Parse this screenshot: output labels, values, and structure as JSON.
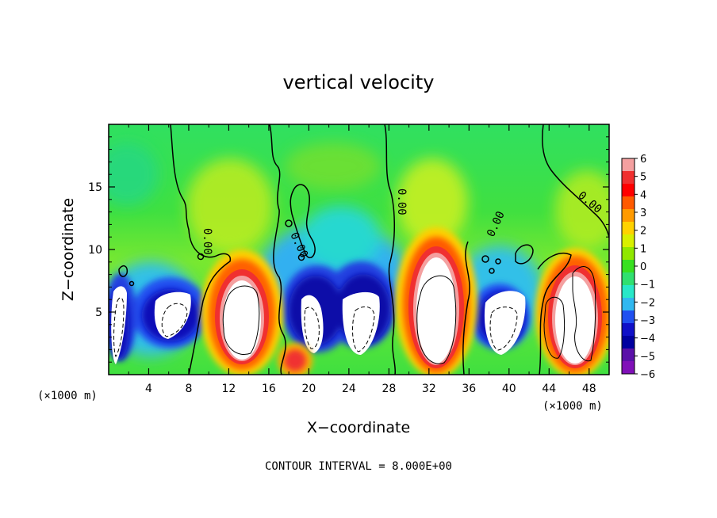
{
  "chart_data": {
    "type": "heatmap",
    "title": "vertical velocity",
    "xlabel": "X−coordinate",
    "ylabel": "Z−coordinate",
    "x_unit_left": "(×1000 m)",
    "x_unit_right": "(×1000 m)",
    "footer": "CONTOUR INTERVAL = 8.000E+00",
    "contour_label": "0.00",
    "xlim": [
      0,
      50
    ],
    "ylim": [
      0,
      20
    ],
    "x_ticks": [
      "4",
      "8",
      "12",
      "16",
      "20",
      "24",
      "28",
      "32",
      "36",
      "40",
      "44",
      "48"
    ],
    "y_ticks": [
      "5",
      "10",
      "15"
    ],
    "colorbar": {
      "ticks": [
        "6",
        "5",
        "4",
        "3",
        "2",
        "1",
        "0",
        "−1",
        "−2",
        "−3",
        "−4",
        "−5",
        "−6"
      ],
      "range": [
        -6,
        6
      ],
      "colors": [
        "#f4a0a0",
        "#f03030",
        "#ff0000",
        "#ff5a00",
        "#ff9a00",
        "#ffd200",
        "#d8f000",
        "#90e800",
        "#38e020",
        "#30e070",
        "#28e8c8",
        "#30b8f0",
        "#2050f0",
        "#1010c8",
        "#0000a0",
        "#5a10a8",
        "#8010b8"
      ]
    },
    "features": [
      {
        "kind": "updraft",
        "x": 13.5,
        "z": 5,
        "value": "> 6"
      },
      {
        "kind": "updraft",
        "x": 33,
        "z": 5.5,
        "value": "> 6"
      },
      {
        "kind": "updraft",
        "x": 47,
        "z": 5,
        "value": "> 6"
      },
      {
        "kind": "downdraft",
        "x": 7,
        "z": 5,
        "value": "< -6"
      },
      {
        "kind": "downdraft",
        "x": 20,
        "z": 5,
        "value": "< -6"
      },
      {
        "kind": "downdraft",
        "x": 25,
        "z": 5,
        "value": "< -6"
      },
      {
        "kind": "downdraft",
        "x": 39.5,
        "z": 4,
        "value": "< -6"
      }
    ]
  }
}
